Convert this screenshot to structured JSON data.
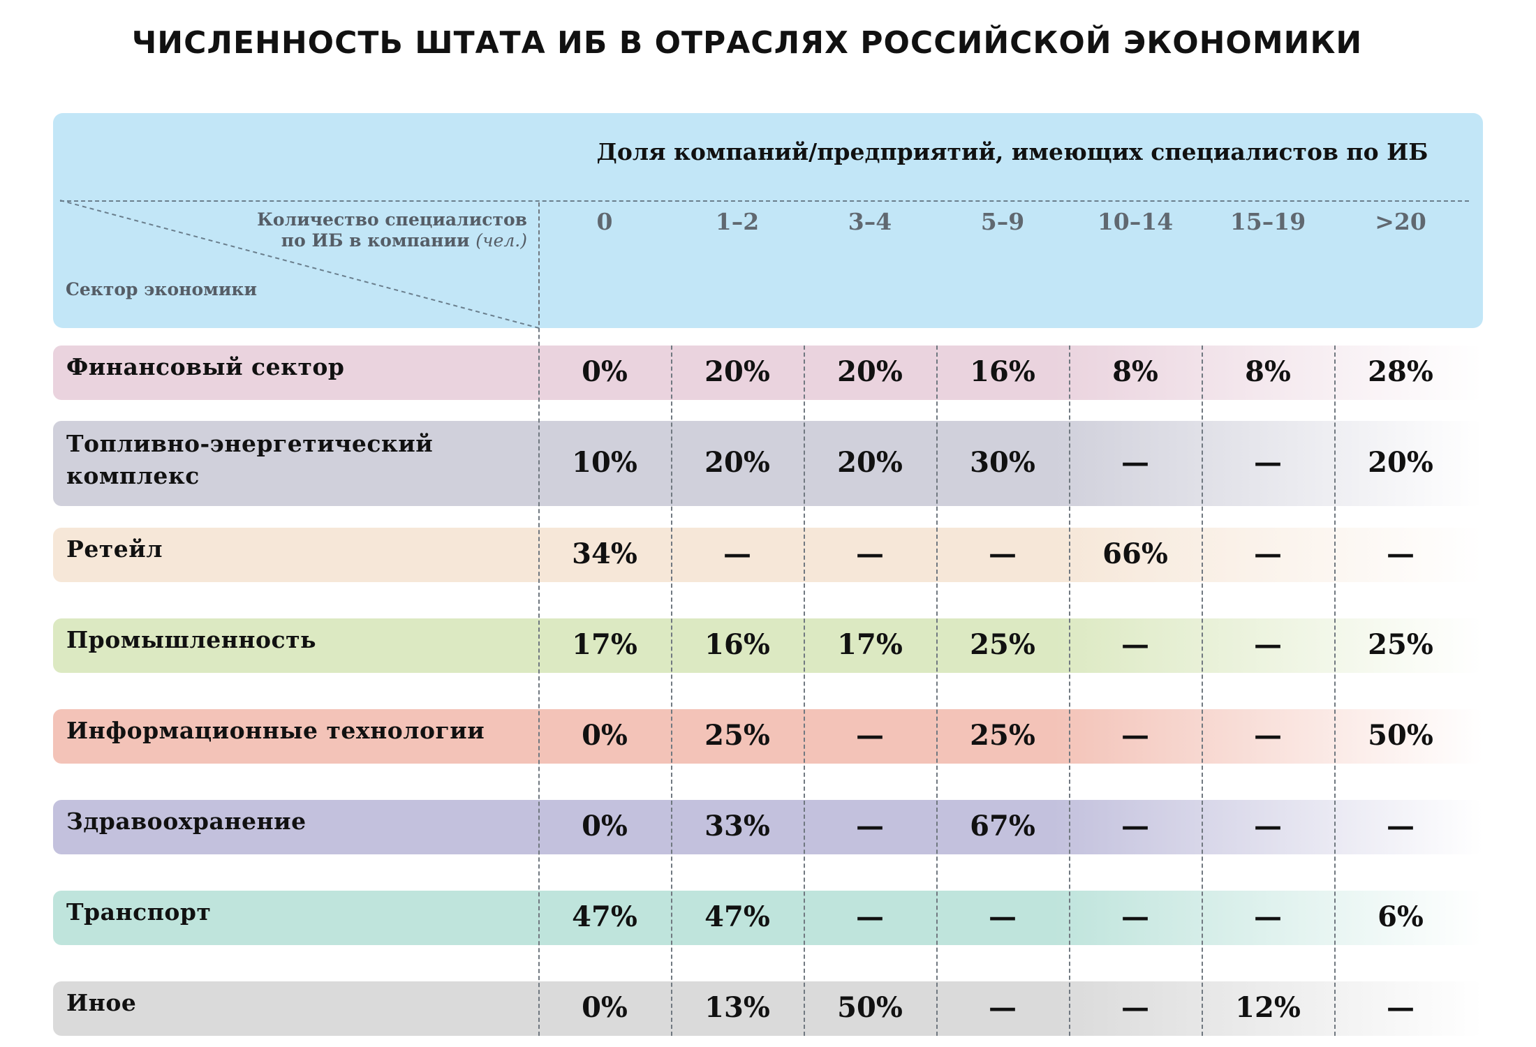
{
  "title": "ЧИСЛЕННОСТЬ ШТАТА ИБ В ОТРАСЛЯХ РОССИЙСКОЙ ЭКОНОМИКИ",
  "header": {
    "super_label": "Доля компаний/предприятий, имеющих специалистов по ИБ",
    "corner_top_line1": "Количество специалистов",
    "corner_top_line2": "по ИБ  в компании",
    "corner_top_unit": "(чел.)",
    "corner_bottom": "Сектор экономики"
  },
  "colors": {
    "header_bg": "#c2e6f7"
  },
  "chart_data": {
    "type": "table",
    "title": "ЧИСЛЕННОСТЬ ШТАТА ИБ В ОТРАСЛЯХ РОССИЙСКОЙ ЭКОНОМИКИ",
    "columns": [
      "0",
      "1–2",
      "3–4",
      "5–9",
      "10–14",
      "15–19",
      ">20"
    ],
    "rows": [
      {
        "sector": "Финансовый сектор",
        "color": "#ead3de",
        "values": [
          "0%",
          "20%",
          "20%",
          "16%",
          "8%",
          "8%",
          "28%"
        ]
      },
      {
        "sector": "Топливно-энергетический комплекс",
        "label_lines": [
          "Топливно-энергетический",
          "комплекс"
        ],
        "color": "#d0d0db",
        "values": [
          "10%",
          "20%",
          "20%",
          "30%",
          "—",
          "—",
          "20%"
        ]
      },
      {
        "sector": "Ретейл",
        "color": "#f6e7d8",
        "values": [
          "34%",
          "—",
          "—",
          "—",
          "66%",
          "—",
          "—"
        ]
      },
      {
        "sector": "Промышленность",
        "color": "#dce9c2",
        "values": [
          "17%",
          "16%",
          "17%",
          "25%",
          "—",
          "—",
          "25%"
        ]
      },
      {
        "sector": "Информационные технологии",
        "color": "#f3c3b8",
        "values": [
          "0%",
          "25%",
          "—",
          "25%",
          "—",
          "—",
          "50%"
        ]
      },
      {
        "sector": "Здравоохранение",
        "color": "#c3c1dd",
        "values": [
          "0%",
          "33%",
          "—",
          "67%",
          "—",
          "—",
          "—"
        ]
      },
      {
        "sector": "Транспорт",
        "color": "#bfe4dc",
        "values": [
          "47%",
          "47%",
          "—",
          "—",
          "—",
          "—",
          "6%"
        ]
      },
      {
        "sector": "Иное",
        "color": "#dadada",
        "values": [
          "0%",
          "13%",
          "50%",
          "—",
          "—",
          "12%",
          "—"
        ]
      }
    ]
  }
}
